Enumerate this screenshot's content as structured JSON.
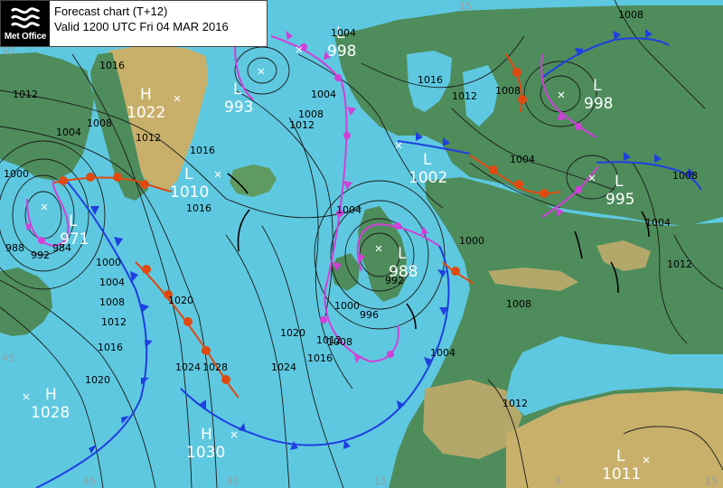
{
  "header": {
    "logo_text": "Met Office",
    "title": "Forecast chart (T+12)",
    "valid": "Valid 1200 UTC Fri 04 MAR 2016"
  },
  "pressure_centres": [
    {
      "type": "H",
      "value": "1022"
    },
    {
      "type": "L",
      "value": "993"
    },
    {
      "type": "L",
      "value": "998"
    },
    {
      "type": "L",
      "value": "998"
    },
    {
      "type": "L",
      "value": "1010"
    },
    {
      "type": "L",
      "value": "1002"
    },
    {
      "type": "L",
      "value": "995"
    },
    {
      "type": "L",
      "value": "971"
    },
    {
      "type": "L",
      "value": "988"
    },
    {
      "type": "H",
      "value": "1028"
    },
    {
      "type": "H",
      "value": "1030"
    },
    {
      "type": "L",
      "value": "1011"
    }
  ],
  "isobar_labels": [
    "1016",
    "1012",
    "1008",
    "1004",
    "1000",
    "996",
    "992",
    "988",
    "984",
    "1020",
    "1024",
    "1028"
  ],
  "grid_labels": [
    "45",
    "30",
    "15",
    "0",
    "15",
    "15",
    "45",
    "50"
  ],
  "colors": {
    "sea": "#5ec8e0",
    "land": "#4e8c5c",
    "cold_front": "#1f3fe0",
    "warm_front": "#e04a10",
    "occluded_front": "#d040d8",
    "trough": "#000000"
  }
}
